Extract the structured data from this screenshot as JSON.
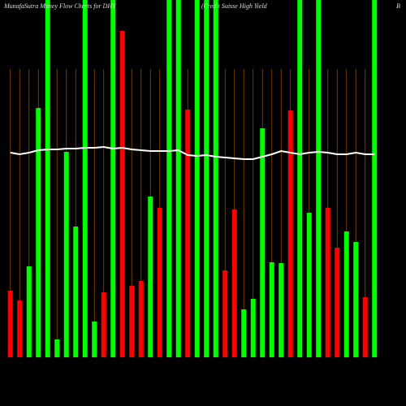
{
  "chart_data": {
    "type": "bar",
    "title": "MunafaSutra  Money Flow  Charts for DHY",
    "subtitle": "(Credit Suisse  High Yield",
    "title_right": "B",
    "categories": [
      null,
      null,
      null,
      null,
      null,
      null,
      null,
      null,
      null,
      null,
      null,
      null,
      null,
      null,
      null,
      null,
      null,
      null,
      null,
      null,
      null,
      null,
      null,
      null,
      null,
      null,
      null,
      null,
      null,
      null,
      null,
      null,
      null,
      null,
      null,
      null,
      null,
      null,
      null,
      null
    ],
    "grid": true,
    "grid_color": "#8a4a00",
    "ylim": [
      0,
      440
    ],
    "series": [
      {
        "colors": [
          "#ff0000",
          "#ff0000",
          "#00ff00",
          "#00ff00",
          "#00ff00",
          "#00ff00",
          "#00ff00",
          "#00ff00",
          "#00ff00",
          "#00ff00",
          "#ff0000",
          "#00ff00",
          "#ff0000",
          "#ff0000",
          "#ff0000",
          "#00ff00",
          "#ff0000",
          "#00ff00",
          "#00ff00",
          "#ff0000",
          "#00ff00",
          "#00ff00",
          "#00ff00",
          "#ff0000",
          "#ff0000",
          "#00ff00",
          "#00ff00",
          "#00ff00",
          "#00ff00",
          "#00ff00",
          "#ff0000",
          "#00ff00",
          "#00ff00",
          "#00ff00",
          "#ff0000",
          "#ff0000",
          "#00ff00",
          "#00ff00",
          "#ff0000",
          "#00ff00"
        ],
        "values": [
          82,
          70,
          112,
          307,
          440,
          22,
          253,
          161,
          440,
          44,
          80,
          440,
          402,
          88,
          94,
          198,
          184,
          440,
          440,
          305,
          440,
          440,
          440,
          107,
          182,
          59,
          72,
          282,
          117,
          116,
          304,
          440,
          178,
          440,
          184,
          135,
          155,
          142,
          74,
          440
        ]
      },
      {
        "type": "line",
        "color": "#ffffff",
        "values": [
          252,
          250,
          252,
          255,
          256,
          256,
          257,
          257,
          258,
          258,
          259,
          257,
          258,
          256,
          255,
          254,
          254,
          254,
          255,
          249,
          248,
          249,
          247,
          246,
          245,
          244,
          244,
          247,
          250,
          254,
          252,
          250,
          252,
          253,
          252,
          250,
          250,
          252,
          250,
          250
        ]
      }
    ]
  }
}
